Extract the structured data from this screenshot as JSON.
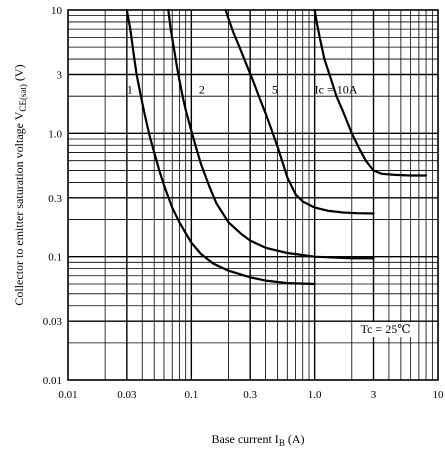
{
  "chart_data": {
    "type": "line",
    "title": "",
    "xlabel": "Base current  I",
    "xlabel_sub": "B",
    "xlabel_unit": " (A)",
    "ylabel": "Collector to emitter saturation voltage  V",
    "ylabel_sub": "CE(sat)",
    "ylabel_unit": " (V)",
    "x_scale": "log",
    "y_scale": "log",
    "xlim": [
      0.01,
      10
    ],
    "ylim": [
      0.01,
      10
    ],
    "grid": true,
    "x_ticks": [
      {
        "value": 0.01,
        "label": "0.01"
      },
      {
        "value": 0.03,
        "label": "0.03"
      },
      {
        "value": 0.1,
        "label": "0.1"
      },
      {
        "value": 0.3,
        "label": "0.3"
      },
      {
        "value": 1,
        "label": "1.0"
      },
      {
        "value": 3,
        "label": "3"
      },
      {
        "value": 10,
        "label": "10"
      }
    ],
    "y_ticks": [
      {
        "value": 0.01,
        "label": "0.01"
      },
      {
        "value": 0.03,
        "label": "0.03"
      },
      {
        "value": 0.1,
        "label": "0.1"
      },
      {
        "value": 0.3,
        "label": "0.3"
      },
      {
        "value": 1,
        "label": "1.0"
      },
      {
        "value": 3,
        "label": "3"
      },
      {
        "value": 10,
        "label": "10"
      }
    ],
    "annotation": "Tc = 25℃",
    "annotation_pos": {
      "x": 6.0,
      "y": 0.024
    },
    "series": [
      {
        "name": "1",
        "label_pos": {
          "x": 0.03,
          "y": 2.1
        },
        "x": [
          0.03,
          0.032,
          0.034,
          0.036,
          0.039,
          0.042,
          0.046,
          0.05,
          0.055,
          0.06,
          0.07,
          0.08,
          0.09,
          0.1,
          0.12,
          0.15,
          0.2,
          0.3,
          0.4,
          0.6,
          1.0
        ],
        "y": [
          10,
          7,
          4.5,
          3.0,
          2.0,
          1.4,
          0.95,
          0.7,
          0.5,
          0.38,
          0.25,
          0.19,
          0.155,
          0.13,
          0.105,
          0.088,
          0.077,
          0.068,
          0.064,
          0.061,
          0.06
        ]
      },
      {
        "name": "2",
        "label_pos": {
          "x": 0.115,
          "y": 2.1
        },
        "x": [
          0.065,
          0.068,
          0.072,
          0.076,
          0.08,
          0.085,
          0.09,
          0.1,
          0.11,
          0.12,
          0.14,
          0.16,
          0.2,
          0.25,
          0.3,
          0.4,
          0.6,
          1.0,
          1.5,
          2.0,
          3.0
        ],
        "y": [
          10,
          7,
          5,
          3.6,
          2.7,
          2.0,
          1.55,
          1.05,
          0.75,
          0.56,
          0.37,
          0.27,
          0.19,
          0.155,
          0.135,
          0.118,
          0.107,
          0.1,
          0.098,
          0.097,
          0.097
        ]
      },
      {
        "name": "5",
        "label_pos": {
          "x": 0.45,
          "y": 2.1
        },
        "x": [
          0.19,
          0.2,
          0.22,
          0.25,
          0.28,
          0.32,
          0.36,
          0.4,
          0.45,
          0.5,
          0.55,
          0.6,
          0.7,
          0.8,
          1.0,
          1.3,
          1.7,
          2.2,
          3.0
        ],
        "y": [
          10,
          8.5,
          6.5,
          4.8,
          3.6,
          2.6,
          1.9,
          1.45,
          1.05,
          0.78,
          0.58,
          0.44,
          0.32,
          0.28,
          0.25,
          0.235,
          0.228,
          0.225,
          0.224
        ]
      },
      {
        "name": "Iₙ = 10A",
        "label_text": "Ic = 10A",
        "label_pos": {
          "x": 1.0,
          "y": 2.1
        },
        "x": [
          1.0,
          1.05,
          1.12,
          1.2,
          1.35,
          1.5,
          1.7,
          2.0,
          2.3,
          2.6,
          3.0,
          3.5,
          4.5,
          6.0,
          8.0
        ],
        "y": [
          10,
          7.5,
          5.5,
          4.0,
          2.8,
          2.0,
          1.5,
          1.0,
          0.75,
          0.6,
          0.5,
          0.47,
          0.46,
          0.455,
          0.455
        ]
      }
    ]
  }
}
